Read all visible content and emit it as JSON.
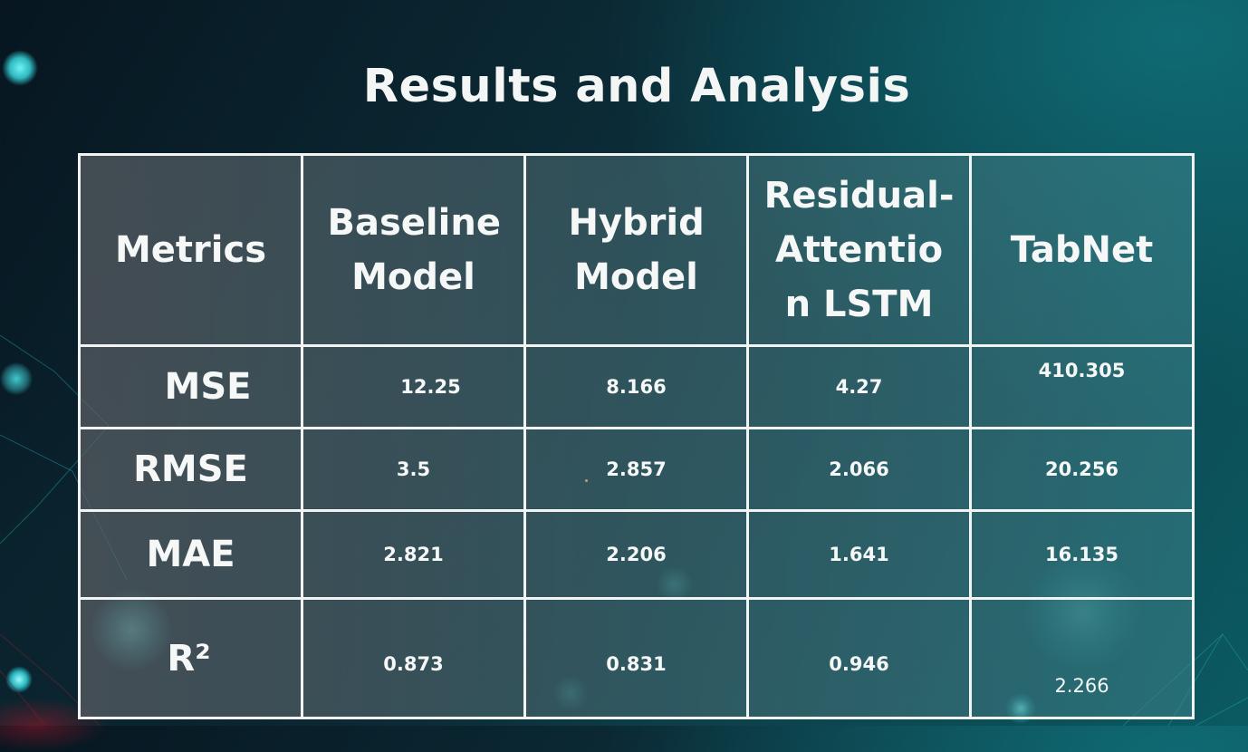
{
  "title": "Results and Analysis",
  "table": {
    "headers": [
      "Metrics",
      "Baseline Model",
      "Hybrid Model",
      "Residual-Attention LSTM",
      "TabNet"
    ],
    "rows": [
      {
        "metric": "MSE",
        "values": [
          "12.25",
          "8.166",
          "4.27",
          "410.305"
        ]
      },
      {
        "metric": "RMSE",
        "values": [
          "3.5",
          "2.857",
          "2.066",
          "20.256"
        ]
      },
      {
        "metric": "MAE",
        "values": [
          "2.821",
          "2.206",
          "1.641",
          "16.135"
        ]
      },
      {
        "metric": "R²",
        "values": [
          "0.873",
          "0.831",
          "0.946",
          "2.266"
        ]
      }
    ]
  },
  "colors": {
    "background_dark": "#071620",
    "background_teal": "#0d4650",
    "table_border": "#f2f4f4",
    "text": "#f6f8f8"
  }
}
